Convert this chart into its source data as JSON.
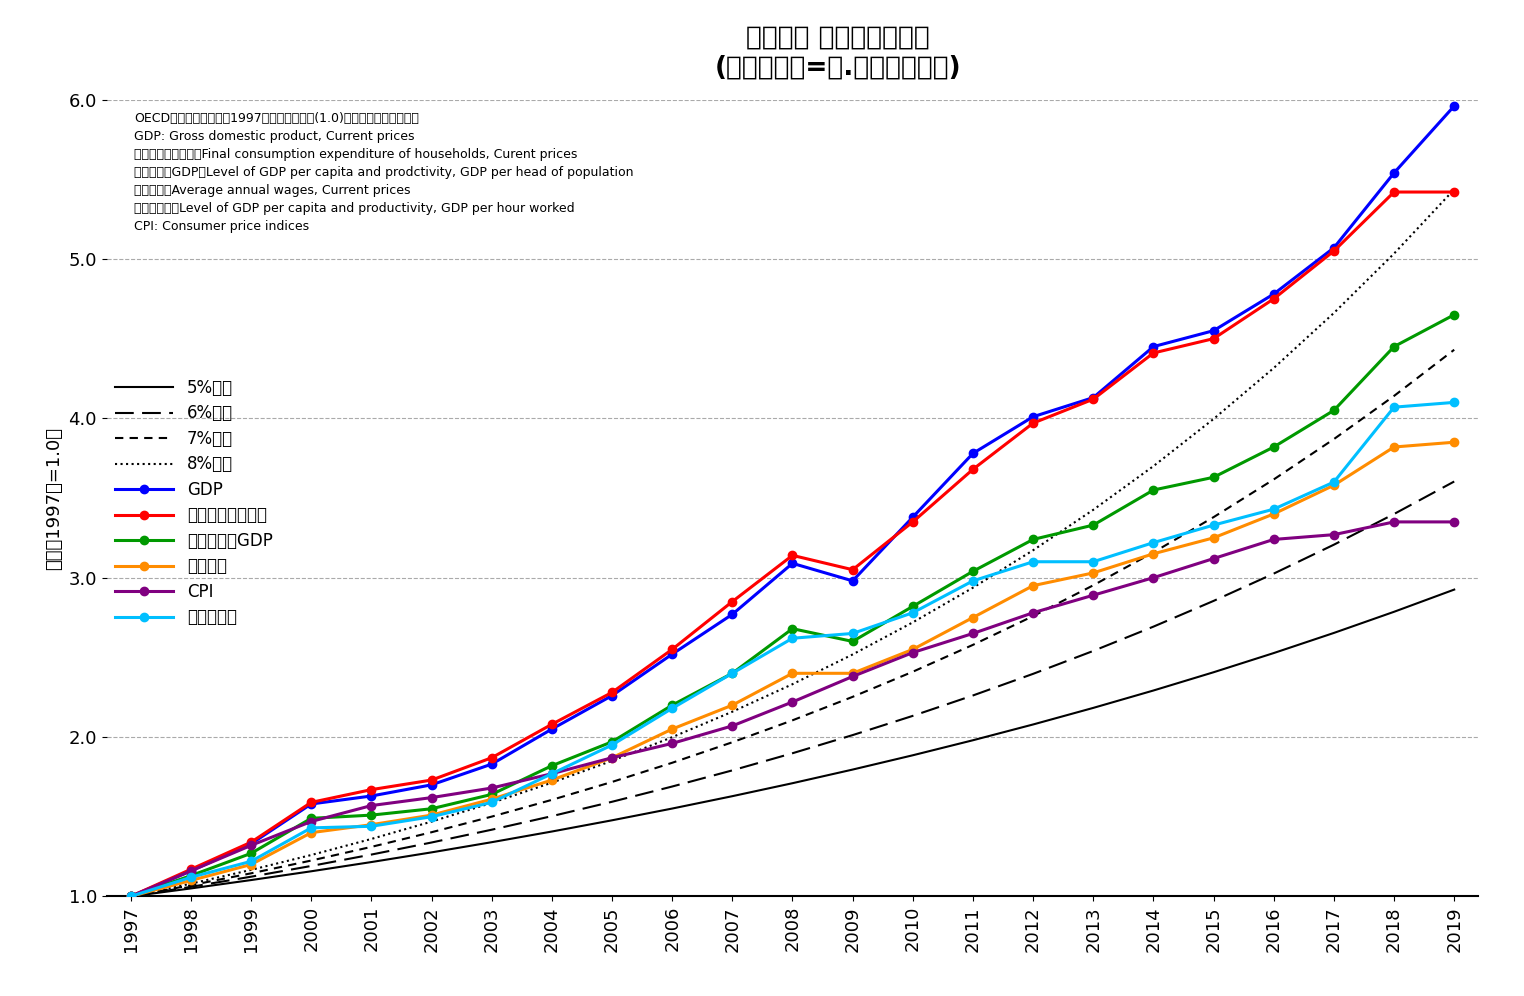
{
  "title_line1": "メキシコ 各種指標の推移",
  "title_line2": "(１９９７年=１.０とした倍率)",
  "ylabel": "倍率（1997年=1.0）",
  "note_lines": [
    "OECDデータより下記の1997年の数値を基準(1.0)とした倍率として計算",
    "GDP: Gross domestic product, Current prices",
    "家計最終消費支出：Final consumption expenditure of households, Curent prices",
    "１人あたりGDP：Level of GDP per capita and prodctivity, GDP per head of population",
    "平均給与：Average annual wages, Current prices",
    "労働生産性：Level of GDP per capita and productivity, GDP per hour worked",
    "CPI: Consumer price indices"
  ],
  "legend_labels": [
    "5%成長",
    "6%成長",
    "7%成長",
    "8%成長",
    "GDP",
    "家計最終消費支出",
    "１人あたりGDP",
    "平均給与",
    "CPI",
    "労働生産性"
  ],
  "years": [
    1997,
    1998,
    1999,
    2000,
    2001,
    2002,
    2003,
    2004,
    2005,
    2006,
    2007,
    2008,
    2009,
    2010,
    2011,
    2012,
    2013,
    2014,
    2015,
    2016,
    2017,
    2018,
    2019
  ],
  "gdp": [
    1.0,
    1.16,
    1.33,
    1.58,
    1.63,
    1.7,
    1.83,
    2.05,
    2.26,
    2.52,
    2.77,
    3.09,
    2.98,
    3.38,
    3.78,
    4.01,
    4.13,
    4.45,
    4.55,
    4.78,
    5.07,
    5.54,
    5.96
  ],
  "consumption": [
    1.0,
    1.17,
    1.34,
    1.59,
    1.67,
    1.73,
    1.87,
    2.08,
    2.28,
    2.55,
    2.85,
    3.14,
    3.05,
    3.35,
    3.68,
    3.97,
    4.12,
    4.41,
    4.5,
    4.75,
    5.05,
    5.42,
    5.42
  ],
  "gdp_per_capita": [
    1.0,
    1.13,
    1.27,
    1.49,
    1.51,
    1.55,
    1.64,
    1.82,
    1.97,
    2.2,
    2.4,
    2.68,
    2.6,
    2.82,
    3.04,
    3.24,
    3.33,
    3.55,
    3.63,
    3.82,
    4.05,
    4.45,
    4.65
  ],
  "wages": [
    1.0,
    1.1,
    1.2,
    1.4,
    1.45,
    1.51,
    1.61,
    1.73,
    1.87,
    2.05,
    2.2,
    2.4,
    2.4,
    2.55,
    2.75,
    2.95,
    3.03,
    3.15,
    3.25,
    3.4,
    3.58,
    3.82,
    3.85
  ],
  "cpi": [
    1.0,
    1.16,
    1.32,
    1.47,
    1.57,
    1.62,
    1.68,
    1.77,
    1.87,
    1.96,
    2.07,
    2.22,
    2.38,
    2.53,
    2.65,
    2.78,
    2.89,
    3.0,
    3.12,
    3.24,
    3.27,
    3.35,
    3.35
  ],
  "labor_productivity": [
    1.0,
    1.12,
    1.22,
    1.43,
    1.44,
    1.5,
    1.59,
    1.77,
    1.95,
    2.18,
    2.4,
    2.62,
    2.65,
    2.78,
    2.98,
    3.1,
    3.1,
    3.22,
    3.33,
    3.43,
    3.6,
    4.07,
    4.1
  ],
  "growth_5pct": [
    1.0,
    1.05,
    1.1025,
    1.1576,
    1.2155,
    1.2763,
    1.3401,
    1.4071,
    1.4775,
    1.5513,
    1.6289,
    1.7103,
    1.7959,
    1.8856,
    1.9799,
    2.0789,
    2.1829,
    2.292,
    2.4066,
    2.527,
    2.6533,
    2.786,
    2.9253
  ],
  "growth_6pct": [
    1.0,
    1.06,
    1.1236,
    1.191,
    1.2625,
    1.3382,
    1.4185,
    1.5036,
    1.5938,
    1.6895,
    1.7908,
    1.8983,
    2.0122,
    2.1329,
    2.2609,
    2.3966,
    2.5404,
    2.6928,
    2.8543,
    3.0256,
    3.2071,
    3.3996,
    3.6035
  ],
  "growth_7pct": [
    1.0,
    1.07,
    1.1449,
    1.225,
    1.3108,
    1.4026,
    1.5007,
    1.6058,
    1.7182,
    1.8385,
    1.9672,
    2.1049,
    2.2522,
    2.4098,
    2.5785,
    2.759,
    2.9522,
    3.1588,
    3.3799,
    3.6165,
    3.8697,
    4.1406,
    4.4304
  ],
  "growth_8pct": [
    1.0,
    1.08,
    1.1664,
    1.2597,
    1.3605,
    1.4693,
    1.5869,
    1.7138,
    1.8509,
    1.999,
    2.1589,
    2.3316,
    2.5182,
    2.7196,
    2.9372,
    3.1722,
    3.4259,
    3.6999,
    3.996,
    4.3157,
    4.661,
    5.0338,
    5.4365
  ],
  "colors": {
    "gdp": "#0000FF",
    "consumption": "#FF0000",
    "gdp_per_capita": "#009900",
    "wages": "#FF8C00",
    "cpi": "#800080",
    "labor_productivity": "#00BFFF"
  },
  "ylim": [
    1.0,
    6.0
  ],
  "xlim_start": 1997,
  "xlim_end": 2019
}
